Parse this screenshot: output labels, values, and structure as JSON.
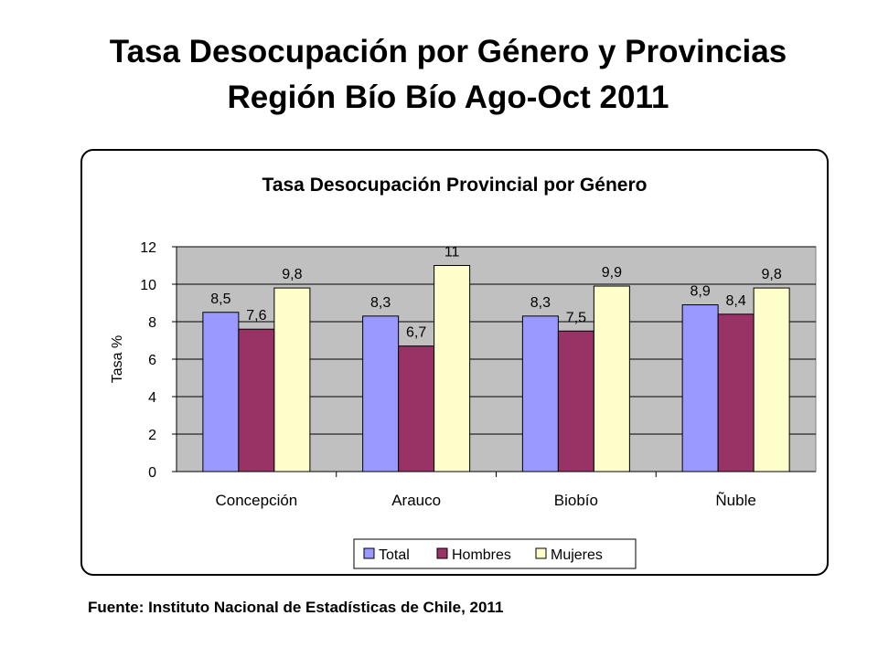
{
  "slide": {
    "title_line1": "Tasa Desocupación por Género y Provincias",
    "title_line2": "Región Bío Bío Ago-Oct 2011",
    "source": "Fuente: Instituto Nacional de Estadísticas de Chile, 2011"
  },
  "chart_data": {
    "type": "bar",
    "title": "Tasa Desocupación Provincial por Género",
    "ylabel": "Tasa %",
    "xlabel": "",
    "categories": [
      "Concepción",
      "Arauco",
      "Biobío",
      "Ñuble"
    ],
    "series": [
      {
        "name": "Total",
        "values": [
          8.5,
          8.3,
          8.3,
          8.9
        ],
        "labels": [
          "8,5",
          "8,3",
          "8,3",
          "8,9"
        ],
        "color": "#9999ff"
      },
      {
        "name": "Hombres",
        "values": [
          7.6,
          6.7,
          7.5,
          8.4
        ],
        "labels": [
          "7,6",
          "6,7",
          "7,5",
          "8,4"
        ],
        "color": "#993366"
      },
      {
        "name": "Mujeres",
        "values": [
          9.8,
          11,
          9.9,
          9.8
        ],
        "labels": [
          "9,8",
          "11",
          "9,9",
          "9,8"
        ],
        "color": "#ffffcc"
      }
    ],
    "ylim": [
      0,
      12
    ],
    "yticks": [
      "0",
      "2",
      "4",
      "6",
      "8",
      "10",
      "12"
    ],
    "grid": true,
    "plot_background": "#c0c0c0",
    "legend_position": "bottom"
  }
}
